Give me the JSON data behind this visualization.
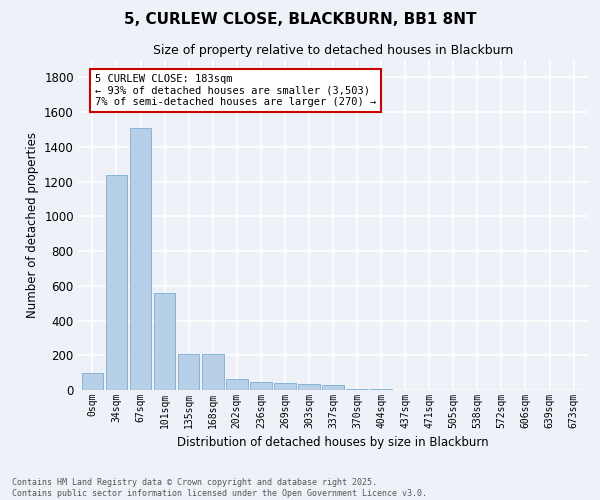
{
  "title": "5, CURLEW CLOSE, BLACKBURN, BB1 8NT",
  "subtitle": "Size of property relative to detached houses in Blackburn",
  "xlabel": "Distribution of detached houses by size in Blackburn",
  "ylabel": "Number of detached properties",
  "bar_color": "#b8cfe8",
  "bar_edge_color": "#7aadd4",
  "background_color": "#eef2f8",
  "grid_color": "#ffffff",
  "categories": [
    "0sqm",
    "34sqm",
    "67sqm",
    "101sqm",
    "135sqm",
    "168sqm",
    "202sqm",
    "236sqm",
    "269sqm",
    "303sqm",
    "337sqm",
    "370sqm",
    "404sqm",
    "437sqm",
    "471sqm",
    "505sqm",
    "538sqm",
    "572sqm",
    "606sqm",
    "639sqm",
    "673sqm"
  ],
  "values": [
    97,
    1240,
    1510,
    560,
    210,
    210,
    65,
    48,
    42,
    32,
    26,
    8,
    4,
    2,
    1,
    0,
    0,
    0,
    0,
    0,
    0
  ],
  "ylim": [
    0,
    1900
  ],
  "yticks": [
    0,
    200,
    400,
    600,
    800,
    1000,
    1200,
    1400,
    1600,
    1800
  ],
  "annotation_text": "5 CURLEW CLOSE: 183sqm\n← 93% of detached houses are smaller (3,503)\n7% of semi-detached houses are larger (270) →",
  "annotation_box_color": "#ffffff",
  "annotation_border_color": "#cc0000",
  "footer_line1": "Contains HM Land Registry data © Crown copyright and database right 2025.",
  "footer_line2": "Contains public sector information licensed under the Open Government Licence v3.0."
}
